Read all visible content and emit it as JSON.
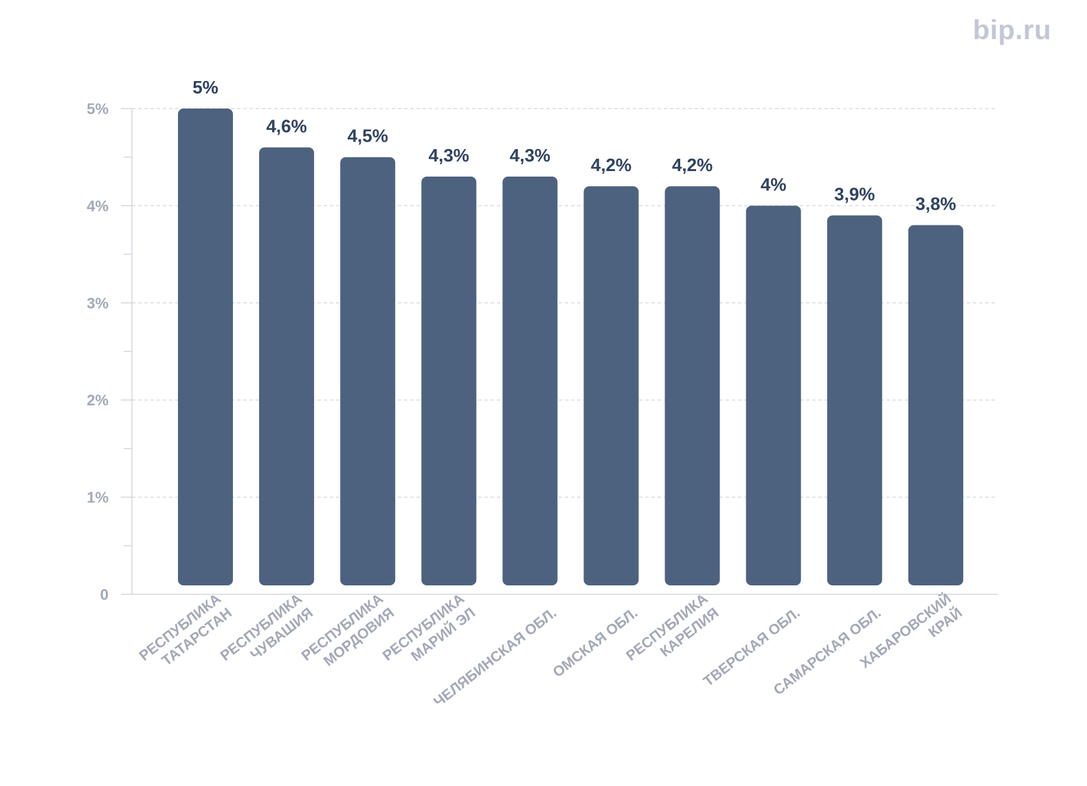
{
  "logo": {
    "text": "bip.ru"
  },
  "colors": {
    "bar": "#4d627f",
    "value_label": "#2f4260",
    "axis_text": "#a3a8b7",
    "grid": "#d9dce3",
    "axis_line": "#d4d7de",
    "logo": "#c3c6d4",
    "logo_accent": "#f08080"
  },
  "chart_data": {
    "type": "bar",
    "categories": [
      [
        "РЕСПУБЛИКА",
        "ТАТАРСТАН"
      ],
      [
        "РЕСПУБЛИКА",
        "ЧУВАШИЯ"
      ],
      [
        "РЕСПУБЛИКА",
        "МОРДОВИЯ"
      ],
      [
        "РЕСПУБЛИКА",
        "МАРИЙ ЭЛ"
      ],
      [
        "ЧЕЛЯБИНСКАЯ ОБЛ."
      ],
      [
        "ОМСКАЯ ОБЛ."
      ],
      [
        "РЕСПУБЛИКА",
        "КАРЕЛИЯ"
      ],
      [
        "ТВЕРСКАЯ ОБЛ."
      ],
      [
        "САМАРСКАЯ ОБЛ."
      ],
      [
        "ХАБАРОВСКИЙ",
        "КРАЙ"
      ]
    ],
    "values": [
      5.0,
      4.6,
      4.5,
      4.3,
      4.3,
      4.2,
      4.2,
      4.0,
      3.9,
      3.8
    ],
    "value_labels": [
      "5%",
      "4,6%",
      "4,5%",
      "4,3%",
      "4,3%",
      "4,2%",
      "4,2%",
      "4%",
      "3,9%",
      "3,8%"
    ],
    "title": "",
    "xlabel": "",
    "ylabel": "",
    "ylim": [
      0,
      5
    ],
    "y_ticks": [
      {
        "value": 0,
        "label": "0"
      },
      {
        "value": 1,
        "label": "1%"
      },
      {
        "value": 2,
        "label": "2%"
      },
      {
        "value": 3,
        "label": "3%"
      },
      {
        "value": 4,
        "label": "4%"
      },
      {
        "value": 5,
        "label": "5%"
      }
    ],
    "grid": true,
    "legend": "none"
  }
}
